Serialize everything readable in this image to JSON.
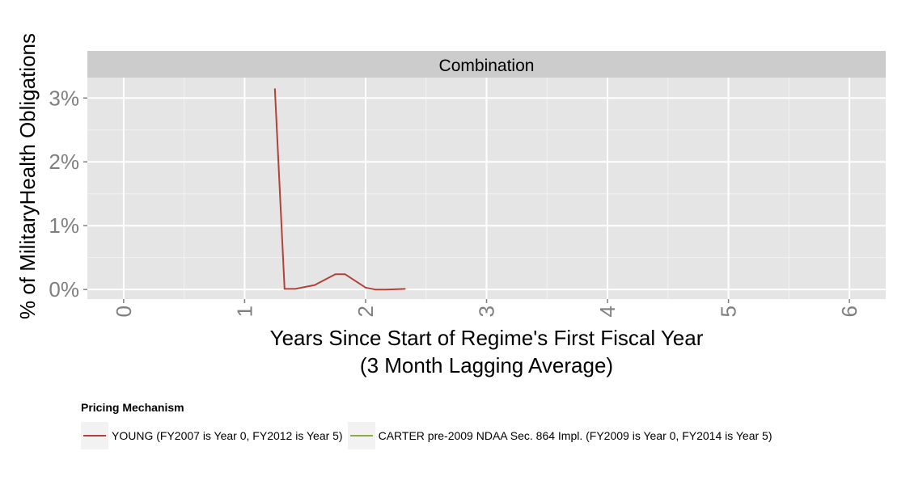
{
  "chart_data": {
    "type": "line",
    "facet_title": "Combination",
    "xlabel": "Years Since Start of Regime's First Fiscal Year",
    "xlabel_line2": "(3 Month Lagging Average)",
    "ylabel": "% of MilitaryHealth Obligations",
    "xlim": [
      -0.3,
      6.3
    ],
    "ylim": [
      -0.0015,
      0.0332
    ],
    "x_ticks": [
      0,
      1,
      2,
      3,
      4,
      5,
      6
    ],
    "x_tick_labels": [
      "0",
      "1",
      "2",
      "3",
      "4",
      "5",
      "6"
    ],
    "y_ticks": [
      0,
      0.01,
      0.02,
      0.03
    ],
    "y_tick_labels": [
      "0%",
      "1%",
      "2%",
      "3%"
    ],
    "grid": true,
    "legend_position": "bottom",
    "legend_title": "Pricing Mechanism",
    "series": [
      {
        "name": "YOUNG (FY2007 is Year 0, FY2012 is Year 5)",
        "color": "#b2413a",
        "x": [
          1.25,
          1.33,
          1.42,
          1.58,
          1.75,
          1.83,
          2.0,
          2.08,
          2.17,
          2.33
        ],
        "y": [
          0.0315,
          0.0001,
          0.0001,
          0.0007,
          0.0024,
          0.0024,
          0.0003,
          0.0,
          0.0,
          0.0001
        ]
      },
      {
        "name": "CARTER pre-2009 NDAA Sec. 864 Impl. (FY2009 is Year 0, FY2014 is Year 5)",
        "color": "#8aac4a",
        "x": [],
        "y": []
      }
    ]
  }
}
